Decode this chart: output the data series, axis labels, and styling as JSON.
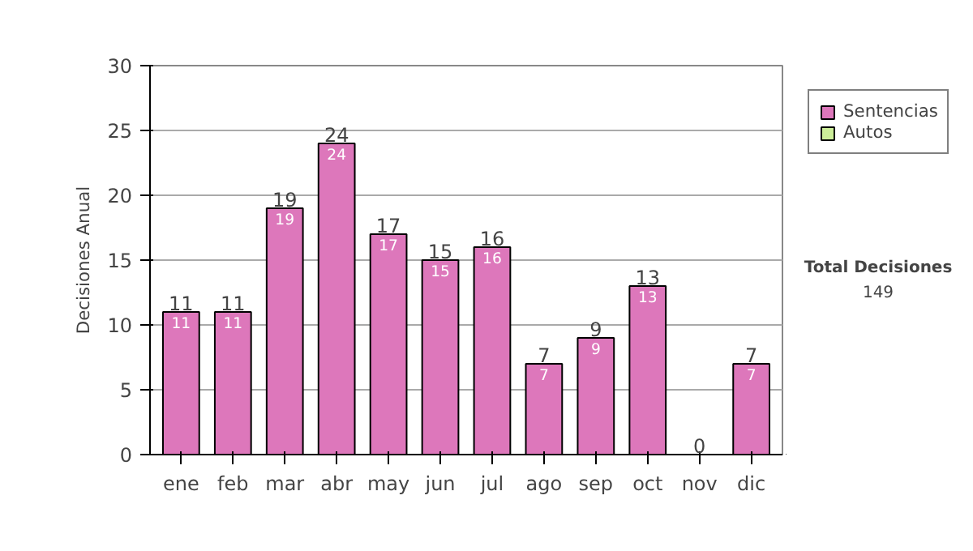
{
  "chart_data": {
    "type": "bar",
    "stacked": true,
    "ylabel": "Decisiones Anual",
    "categories": [
      "ene",
      "feb",
      "mar",
      "abr",
      "may",
      "jun",
      "jul",
      "ago",
      "sep",
      "oct",
      "nov",
      "dic"
    ],
    "series": [
      {
        "name": "Sentencias",
        "color": "#dd77bb",
        "values": [
          11,
          11,
          19,
          24,
          17,
          15,
          16,
          7,
          9,
          13,
          0,
          7
        ],
        "value_labels": [
          "11",
          "11",
          "19",
          "24",
          "17",
          "15",
          "16",
          "7",
          "9",
          "13",
          null,
          "7"
        ]
      },
      {
        "name": "Autos",
        "color": "#ccee99",
        "values": [
          null,
          null,
          null,
          null,
          null,
          null,
          null,
          null,
          null,
          null,
          null,
          null
        ]
      }
    ],
    "totals": [
      "11",
      "11",
      "19",
      "24",
      "17",
      "15",
      "16",
      "7",
      "9",
      "13",
      "0",
      "7"
    ],
    "ylim": [
      0,
      30
    ],
    "yticks": [
      0,
      5,
      10,
      15,
      20,
      25,
      30
    ],
    "grid": "y",
    "legend": "right",
    "annotations": [
      "Total Decisiones",
      "149"
    ]
  }
}
